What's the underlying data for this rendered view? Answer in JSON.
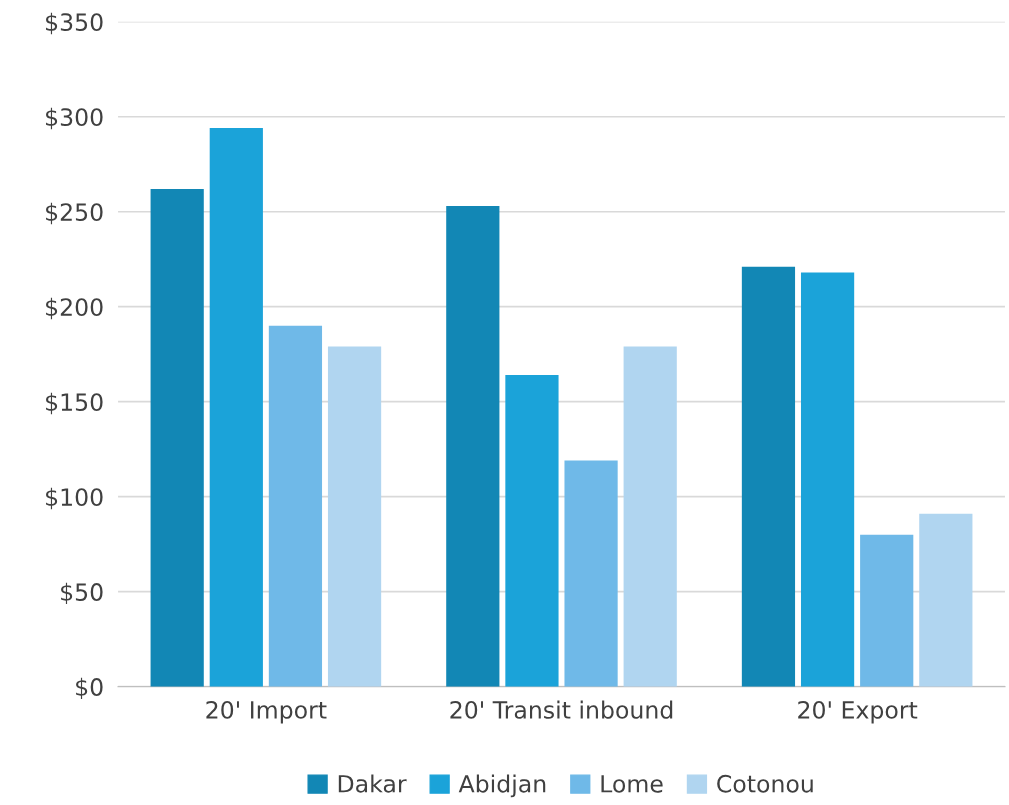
{
  "chart_data": {
    "type": "bar",
    "categories": [
      "20' Import",
      "20' Transit inbound",
      "20' Export"
    ],
    "series": [
      {
        "name": "Dakar",
        "color": "#1287b5",
        "values": [
          262,
          253,
          221
        ]
      },
      {
        "name": "Abidjan",
        "color": "#1ba3d9",
        "values": [
          294,
          164,
          218
        ]
      },
      {
        "name": "Lome",
        "color": "#6fb9e8",
        "values": [
          190,
          119,
          80
        ]
      },
      {
        "name": "Cotonou",
        "color": "#b0d5f0",
        "values": [
          179,
          179,
          91
        ]
      }
    ],
    "ylim": [
      0,
      350
    ],
    "yticks": [
      {
        "value": 0,
        "label": "$0"
      },
      {
        "value": 50,
        "label": "$50"
      },
      {
        "value": 100,
        "label": "$100"
      },
      {
        "value": 150,
        "label": "$150"
      },
      {
        "value": 200,
        "label": "$200"
      },
      {
        "value": 250,
        "label": "$250"
      },
      {
        "value": 300,
        "label": "$300"
      },
      {
        "value": 350,
        "label": "$350"
      }
    ],
    "grid": "y",
    "legend": "bottom"
  }
}
